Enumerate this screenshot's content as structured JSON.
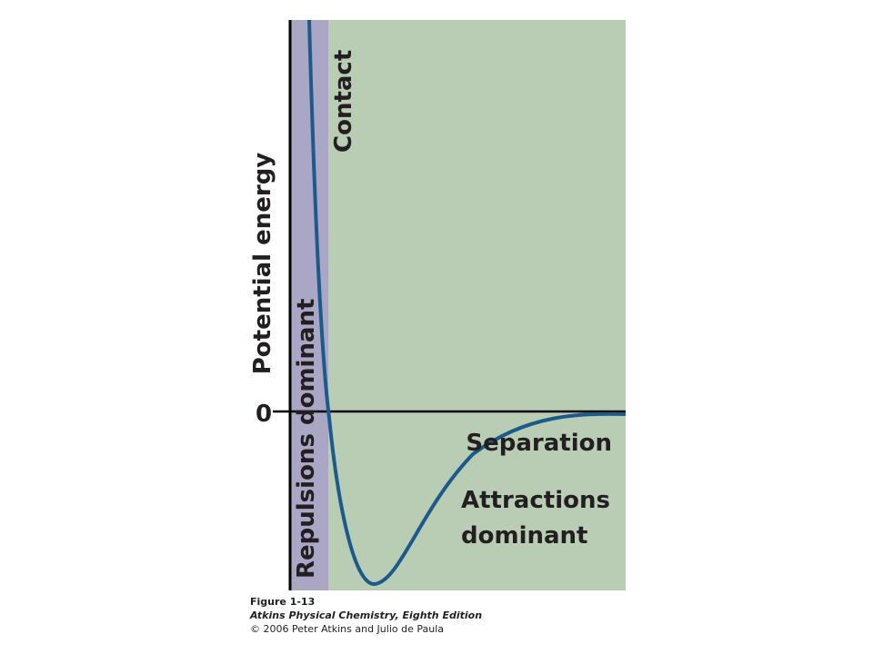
{
  "axis": {
    "y_label": "Potential energy",
    "zero_label": "0",
    "x_label": "Separation"
  },
  "regions": {
    "repulsion": "Repulsions dominant",
    "contact": "Contact",
    "attraction": [
      "Attractions",
      "dominant"
    ]
  },
  "caption": {
    "figure": "Figure 1-13",
    "book": "Atkins Physical Chemistry, Eighth Edition",
    "copyright": "© 2006 Peter Atkins and Julio de Paula"
  }
}
